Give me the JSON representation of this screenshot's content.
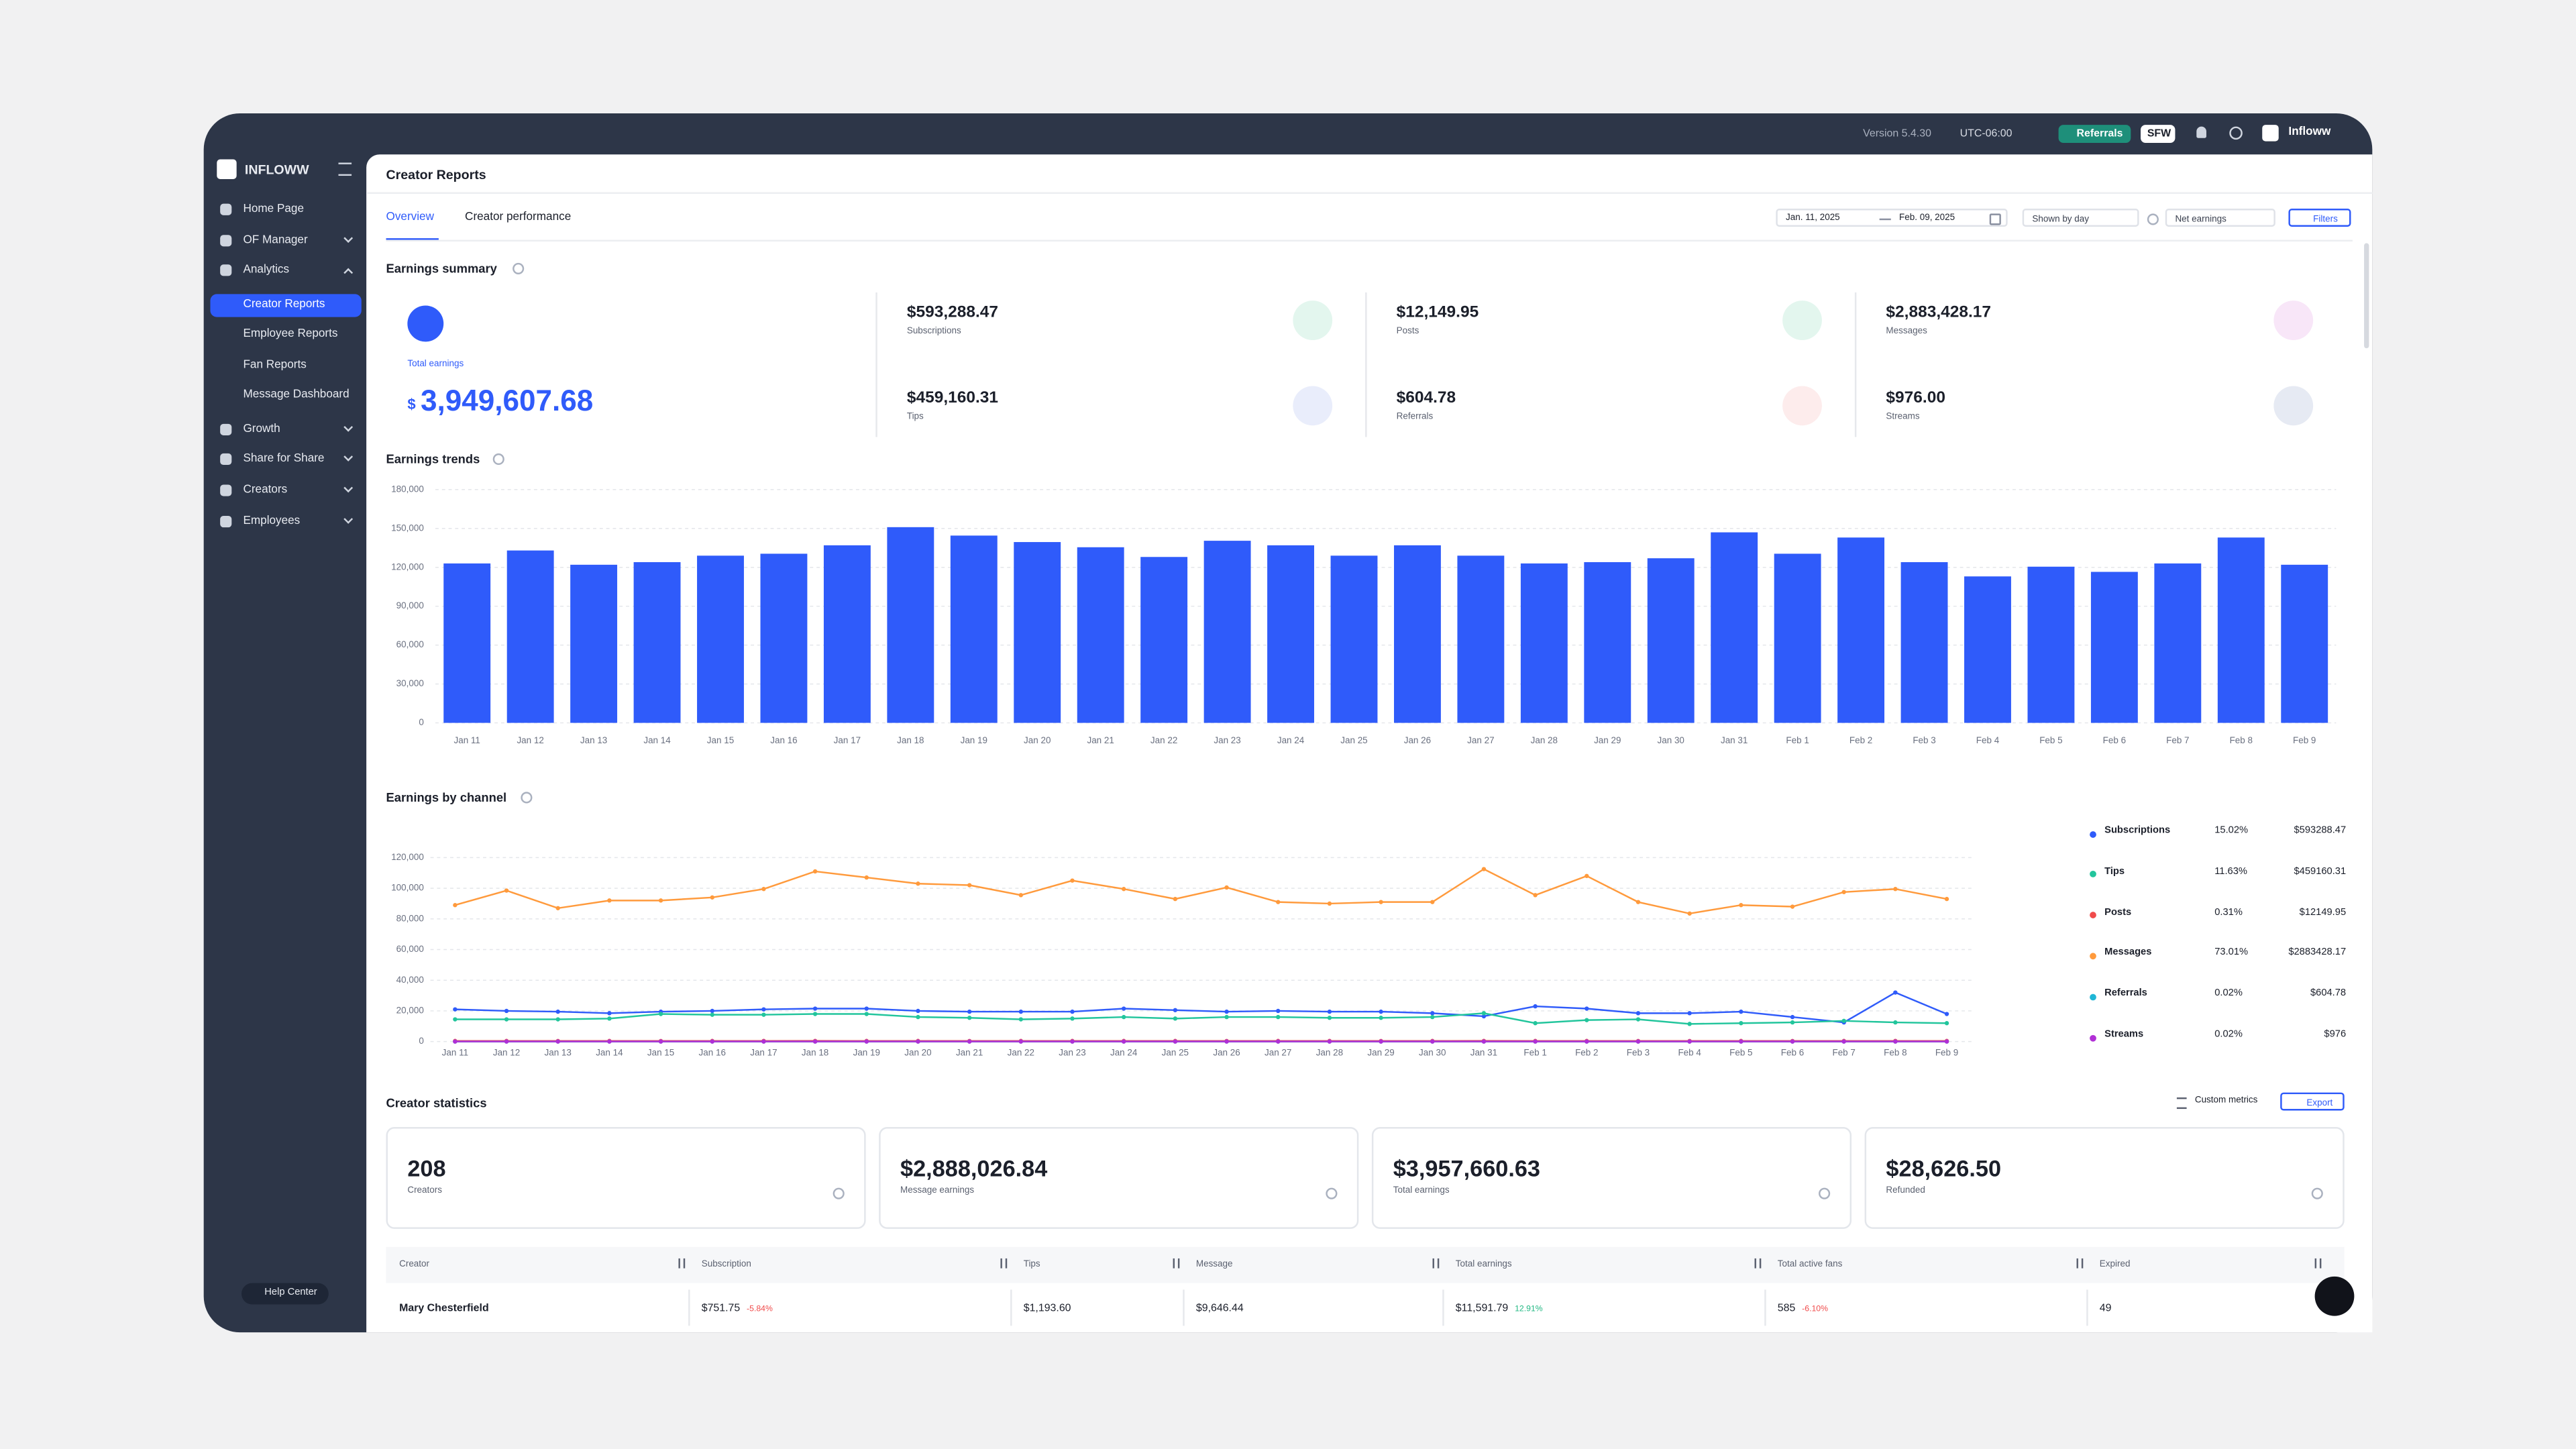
{
  "topbar": {
    "version": "Version 5.4.30",
    "timezone": "UTC-06:00",
    "referrals": "Referrals",
    "sfw": "SFW",
    "user": "Infloww"
  },
  "sidebar": {
    "brand": "INFLOWW",
    "items": [
      "Home Page",
      "OF Manager",
      "Analytics",
      "Creator Reports",
      "Employee Reports",
      "Fan Reports",
      "Message Dashboard",
      "Growth",
      "Share for Share",
      "Creators",
      "Employees"
    ],
    "help": "Help Center"
  },
  "header": {
    "title": "Creator Reports",
    "tabs": [
      "Overview",
      "Creator performance"
    ],
    "date_from": "Jan. 11, 2025",
    "date_to": "Feb. 09, 2025",
    "shown_by": "Shown by day",
    "metric": "Net earnings",
    "filters": "Filters"
  },
  "earnings_summary": {
    "title": "Earnings summary",
    "total_label": "Total earnings",
    "total_currency": "$",
    "total_value": "3,949,607.68",
    "items": [
      {
        "value": "$593,288.47",
        "label": "Subscriptions"
      },
      {
        "value": "$459,160.31",
        "label": "Tips"
      },
      {
        "value": "$12,149.95",
        "label": "Posts"
      },
      {
        "value": "$604.78",
        "label": "Referrals"
      },
      {
        "value": "$2,883,428.17",
        "label": "Messages"
      },
      {
        "value": "$976.00",
        "label": "Streams"
      }
    ]
  },
  "chart_data": [
    {
      "type": "bar",
      "title": "Earnings trends",
      "categories": [
        "Jan 11",
        "Jan 12",
        "Jan 13",
        "Jan 14",
        "Jan 15",
        "Jan 16",
        "Jan 17",
        "Jan 18",
        "Jan 19",
        "Jan 20",
        "Jan 21",
        "Jan 22",
        "Jan 23",
        "Jan 24",
        "Jan 25",
        "Jan 26",
        "Jan 27",
        "Jan 28",
        "Jan 29",
        "Jan 30",
        "Jan 31",
        "Feb 1",
        "Feb 2",
        "Feb 3",
        "Feb 4",
        "Feb 5",
        "Feb 6",
        "Feb 7",
        "Feb 8",
        "Feb 9"
      ],
      "values": [
        123000,
        133000,
        122000,
        124000,
        129000,
        130500,
        137000,
        151000,
        144500,
        139500,
        135500,
        128000,
        140500,
        137000,
        129000,
        137000,
        129000,
        123000,
        124000,
        127000,
        147000,
        130500,
        143000,
        124000,
        113000,
        120500,
        116500,
        123000,
        143000,
        122000
      ],
      "color": "#2f5bfa",
      "ylim": [
        0,
        180000
      ],
      "yticks": [
        0,
        {
          "value": 30000,
          "label": "30,000"
        },
        {
          "value": 60000,
          "label": "60,000"
        },
        {
          "value": 90000,
          "label": "90,000"
        },
        {
          "value": 120000,
          "label": "120,000"
        },
        {
          "value": 150000,
          "label": "150,000"
        },
        {
          "value": 180000,
          "label": "180,000"
        }
      ],
      "grid": true
    },
    {
      "type": "line",
      "title": "Earnings by channel",
      "categories": [
        "Jan 11",
        "Jan 12",
        "Jan 13",
        "Jan 14",
        "Jan 15",
        "Jan 16",
        "Jan 17",
        "Jan 18",
        "Jan 19",
        "Jan 20",
        "Jan 21",
        "Jan 22",
        "Jan 23",
        "Jan 24",
        "Jan 25",
        "Jan 26",
        "Jan 27",
        "Jan 28",
        "Jan 29",
        "Jan 30",
        "Jan 31",
        "Feb 1",
        "Feb 2",
        "Feb 3",
        "Feb 4",
        "Feb 5",
        "Feb 6",
        "Feb 7",
        "Feb 8",
        "Feb 9"
      ],
      "series": [
        {
          "name": "Subscriptions",
          "color": "#2f5bfa",
          "share": "15.02%",
          "total": "$593288.47",
          "values": [
            21000,
            20000,
            19500,
            18500,
            19500,
            20000,
            21000,
            21500,
            21500,
            20000,
            19500,
            19500,
            19500,
            21500,
            20500,
            19500,
            20000,
            19500,
            19500,
            18500,
            16500,
            23000,
            21500,
            18500,
            18500,
            19500,
            16000,
            12500,
            32000,
            18000
          ]
        },
        {
          "name": "Tips",
          "color": "#22c59c",
          "share": "11.63%",
          "total": "$459160.31",
          "values": [
            14500,
            14500,
            14500,
            15000,
            18000,
            17500,
            17500,
            18000,
            18000,
            16000,
            15500,
            14500,
            15000,
            16000,
            15000,
            16000,
            16000,
            15500,
            15500,
            16000,
            18500,
            12000,
            14000,
            14500,
            11500,
            12000,
            12500,
            13500,
            12500,
            12000
          ]
        },
        {
          "name": "Posts",
          "color": "#f04b4b",
          "share": "0.31%",
          "total": "$12149.95",
          "values": [
            400,
            420,
            380,
            410,
            390,
            400,
            430,
            450,
            420,
            410,
            390,
            400,
            420,
            410,
            400,
            390,
            410,
            400,
            380,
            400,
            440,
            410,
            420,
            390,
            380,
            400,
            390,
            410,
            430,
            400
          ]
        },
        {
          "name": "Messages",
          "color": "#ff9a3c",
          "share": "73.01%",
          "total": "$2883428.17",
          "values": [
            89000,
            98500,
            87000,
            92000,
            92000,
            94000,
            99500,
            111000,
            107000,
            103000,
            102000,
            95500,
            105000,
            99500,
            93000,
            100500,
            91000,
            90000,
            91000,
            91000,
            112500,
            95500,
            108000,
            91000,
            83500,
            89000,
            88000,
            97500,
            99500,
            93000
          ]
        },
        {
          "name": "Referrals",
          "color": "#1fb6d6",
          "share": "0.02%",
          "total": "$604.78",
          "values": [
            20,
            18,
            22,
            19,
            21,
            20,
            19,
            23,
            20,
            18,
            21,
            20,
            19,
            22,
            20,
            21,
            19,
            20,
            18,
            20,
            24,
            20,
            21,
            19,
            18,
            20,
            19,
            21,
            22,
            20
          ]
        },
        {
          "name": "Streams",
          "color": "#b12fd6",
          "share": "0.02%",
          "total": "$976",
          "values": [
            30,
            32,
            31,
            33,
            30,
            34,
            32,
            35,
            33,
            31,
            32,
            33,
            31,
            34,
            32,
            33,
            31,
            32,
            30,
            33,
            36,
            32,
            34,
            31,
            30,
            33,
            32,
            34,
            35,
            32
          ]
        }
      ],
      "ylim": [
        0,
        120000
      ],
      "yticks": [
        0,
        {
          "value": 20000,
          "label": "20,000"
        },
        {
          "value": 40000,
          "label": "40,000"
        },
        {
          "value": 60000,
          "label": "60,000"
        },
        {
          "value": 80000,
          "label": "80,000"
        },
        {
          "value": 100000,
          "label": "100,000"
        },
        {
          "value": 120000,
          "label": "120,000"
        }
      ],
      "grid": true
    }
  ],
  "creator_statistics": {
    "title": "Creator statistics",
    "custom_metrics": "Custom metrics",
    "export": "Export",
    "cards": [
      {
        "value": "208",
        "label": "Creators"
      },
      {
        "value": "$2,888,026.84",
        "label": "Message earnings"
      },
      {
        "value": "$3,957,660.63",
        "label": "Total earnings"
      },
      {
        "value": "$28,626.50",
        "label": "Refunded"
      }
    ],
    "table": {
      "columns": [
        "Creator",
        "Subscription",
        "Tips",
        "Message",
        "Total earnings",
        "Total active fans",
        "Expired"
      ],
      "rows": [
        [
          {
            "value": "Mary Chesterfield"
          },
          {
            "value": "$751.75",
            "change": "-5.84%"
          },
          {
            "value": "$1,193.60"
          },
          {
            "value": "$9,646.44"
          },
          {
            "value": "$11,591.79",
            "change": "12.91%"
          },
          {
            "value": "585",
            "change": "-6.10%"
          },
          {
            "value": "49"
          }
        ]
      ]
    }
  }
}
